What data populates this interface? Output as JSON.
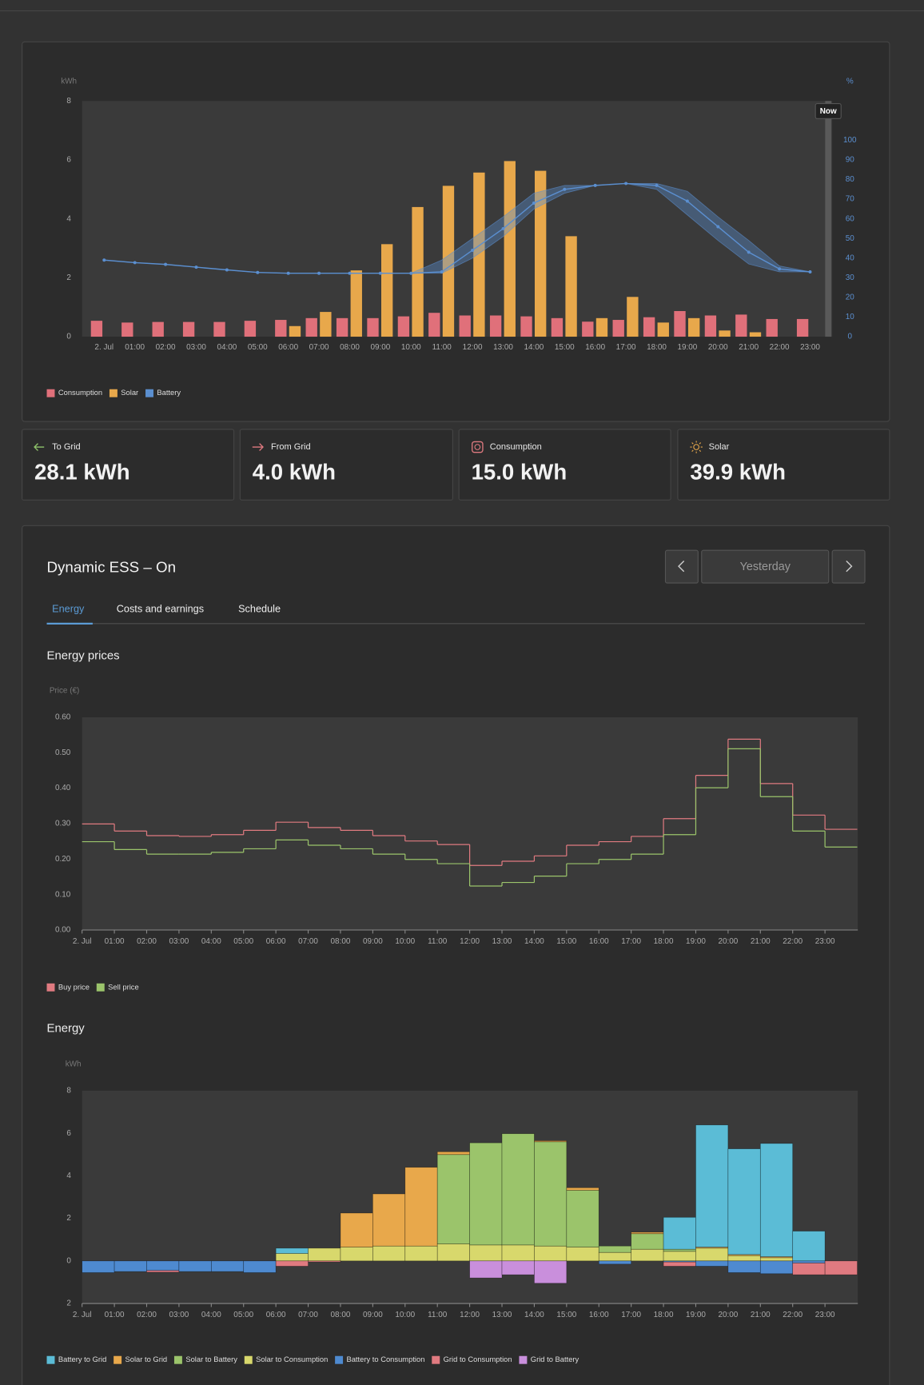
{
  "stats": [
    {
      "label": "To Grid",
      "value": "28.1 kWh"
    },
    {
      "label": "From Grid",
      "value": "4.0 kWh"
    },
    {
      "label": "Consumption",
      "value": "15.0 kWh"
    },
    {
      "label": "Solar",
      "value": "39.9 kWh"
    }
  ],
  "ess": {
    "title": "Dynamic ESS – On",
    "date_button": "Yesterday",
    "tabs": [
      "Energy",
      "Costs and earnings",
      "Schedule"
    ],
    "sections": [
      "Energy prices",
      "Energy"
    ]
  },
  "chart_data": [
    {
      "type": "bar",
      "ylabel": "kWh",
      "y2label": "%",
      "annotation": "Now",
      "categories": [
        "2. Jul",
        "01:00",
        "02:00",
        "03:00",
        "04:00",
        "05:00",
        "06:00",
        "07:00",
        "08:00",
        "09:00",
        "10:00",
        "11:00",
        "12:00",
        "13:00",
        "14:00",
        "15:00",
        "16:00",
        "17:00",
        "18:00",
        "19:00",
        "20:00",
        "21:00",
        "22:00",
        "23:00"
      ],
      "series": [
        {
          "name": "Consumption",
          "color": "#e0707a",
          "values": [
            0.54,
            0.48,
            0.5,
            0.5,
            0.5,
            0.54,
            0.57,
            0.63,
            0.63,
            0.63,
            0.69,
            0.81,
            0.72,
            0.72,
            0.69,
            0.63,
            0.51,
            0.57,
            0.66,
            0.87,
            0.72,
            0.75,
            0.6,
            0.6
          ]
        },
        {
          "name": "Solar",
          "color": "#e8a84b",
          "values": [
            0,
            0,
            0,
            0,
            0,
            0,
            0.36,
            0.84,
            2.25,
            3.14,
            4.4,
            5.12,
            5.57,
            5.96,
            5.63,
            3.41,
            0.63,
            1.35,
            0.48,
            0.63,
            0.21,
            0.15,
            0,
            0
          ]
        },
        {
          "name": "Battery",
          "color": "#5b8fd0",
          "axis": "y2",
          "values": [
            39,
            37.7,
            36.8,
            35.4,
            34,
            32.7,
            32.3,
            32.3,
            32.3,
            32.3,
            32.3,
            33,
            44,
            55,
            68,
            75,
            77,
            78,
            77,
            69,
            56,
            43,
            34.5,
            33
          ],
          "low": [
            39,
            37.7,
            36.8,
            35.4,
            34,
            32.7,
            32.3,
            32.3,
            32.3,
            32.3,
            32.3,
            32.3,
            40,
            51,
            65,
            73,
            77,
            78,
            75,
            62,
            49,
            37,
            33,
            33
          ],
          "high": [
            39,
            37.7,
            36.8,
            35.4,
            34,
            32.7,
            32.3,
            32.3,
            32.3,
            32.3,
            32.3,
            39,
            50,
            61,
            73,
            77,
            77,
            78,
            78,
            74,
            61,
            49,
            36,
            33
          ]
        }
      ],
      "ylim": [
        0,
        8
      ],
      "yticks": [
        0,
        2,
        4,
        6,
        8
      ],
      "y2lim": [
        0,
        120
      ],
      "y2ticks": [
        0,
        10,
        20,
        30,
        40,
        50,
        60,
        70,
        80,
        90,
        100
      ]
    },
    {
      "type": "step",
      "ylabel": "Price (€)",
      "categories": [
        "2. Jul",
        "01:00",
        "02:00",
        "03:00",
        "04:00",
        "05:00",
        "06:00",
        "07:00",
        "08:00",
        "09:00",
        "10:00",
        "11:00",
        "12:00",
        "13:00",
        "14:00",
        "15:00",
        "16:00",
        "17:00",
        "18:00",
        "19:00",
        "20:00",
        "21:00",
        "22:00",
        "23:00"
      ],
      "series": [
        {
          "name": "Buy price",
          "color": "#e07a80",
          "values": [
            0.299,
            0.279,
            0.266,
            0.264,
            0.269,
            0.281,
            0.304,
            0.289,
            0.281,
            0.266,
            0.251,
            0.241,
            0.182,
            0.194,
            0.209,
            0.239,
            0.249,
            0.264,
            0.314,
            0.436,
            0.538,
            0.413,
            0.324,
            0.284
          ]
        },
        {
          "name": "Sell price",
          "color": "#9bc46b",
          "values": [
            0.249,
            0.227,
            0.214,
            0.214,
            0.219,
            0.229,
            0.254,
            0.239,
            0.229,
            0.214,
            0.199,
            0.187,
            0.124,
            0.134,
            0.152,
            0.187,
            0.199,
            0.214,
            0.269,
            0.401,
            0.511,
            0.376,
            0.279,
            0.234
          ]
        }
      ],
      "ylim": [
        0,
        0.6
      ],
      "yticks": [
        {
          "value": 0,
          "label": "0.00"
        },
        {
          "value": 0.1,
          "label": "0.10"
        },
        {
          "value": 0.2,
          "label": "0.20"
        },
        {
          "value": 0.3,
          "label": "0.30"
        },
        {
          "value": 0.4,
          "label": "0.40"
        },
        {
          "value": 0.5,
          "label": "0.50"
        },
        {
          "value": 0.6,
          "label": "0.60"
        }
      ]
    },
    {
      "type": "stacked-bar",
      "ylabel": "kWh",
      "categories": [
        "2. Jul",
        "01:00",
        "02:00",
        "03:00",
        "04:00",
        "05:00",
        "06:00",
        "07:00",
        "08:00",
        "09:00",
        "10:00",
        "11:00",
        "12:00",
        "13:00",
        "14:00",
        "15:00",
        "16:00",
        "17:00",
        "18:00",
        "19:00",
        "20:00",
        "21:00",
        "22:00",
        "23:00"
      ],
      "series": [
        {
          "name": "Battery to Grid",
          "color": "#5bbcd6",
          "values": [
            0,
            0,
            0,
            0,
            0,
            0,
            0.25,
            0,
            0,
            0,
            0,
            0,
            0,
            0,
            0,
            0,
            0,
            0,
            1.5,
            5.74,
            4.97,
            5.32,
            1.4,
            0
          ]
        },
        {
          "name": "Solar to Grid",
          "color": "#e8a84b",
          "values": [
            0,
            0,
            0,
            0,
            0,
            0,
            0,
            0,
            1.6,
            2.45,
            3.7,
            0.13,
            0,
            0,
            0.05,
            0.12,
            0,
            0.07,
            0,
            0.05,
            0.05,
            0.05,
            0,
            0
          ]
        },
        {
          "name": "Solar to Battery",
          "color": "#9bc46b",
          "values": [
            0,
            0,
            0,
            0,
            0,
            0,
            0,
            0,
            0,
            0,
            0,
            4.2,
            4.8,
            5.23,
            4.9,
            2.67,
            0.3,
            0.73,
            0.1,
            0,
            0,
            0,
            0,
            0
          ]
        },
        {
          "name": "Solar to Consumption",
          "color": "#d8d86c",
          "values": [
            0,
            0,
            0,
            0,
            0,
            0,
            0.35,
            0.6,
            0.65,
            0.7,
            0.7,
            0.8,
            0.75,
            0.75,
            0.7,
            0.65,
            0.4,
            0.55,
            0.45,
            0.6,
            0.25,
            0.15,
            0,
            0
          ]
        },
        {
          "name": "Battery to Consumption",
          "color": "#4e8ad0",
          "values": [
            -0.55,
            -0.5,
            -0.45,
            -0.5,
            -0.5,
            -0.55,
            0,
            0,
            0,
            0,
            0,
            0,
            0,
            0,
            0,
            0,
            -0.15,
            0,
            -0.05,
            -0.25,
            -0.55,
            -0.6,
            -0.1,
            0
          ]
        },
        {
          "name": "Grid to Consumption",
          "color": "#e07a80",
          "values": [
            0,
            0,
            -0.08,
            0,
            0,
            0,
            -0.25,
            -0.05,
            0,
            0,
            0,
            0,
            0,
            0,
            0,
            0,
            0,
            0,
            -0.2,
            0,
            0,
            0,
            -0.55,
            -0.65
          ]
        },
        {
          "name": "Grid to Battery",
          "color": "#c98fdc",
          "values": [
            0,
            0,
            0,
            0,
            0,
            0,
            0,
            0,
            0,
            0,
            0,
            0,
            -0.8,
            -0.65,
            -1.05,
            0,
            0,
            0,
            0,
            0,
            0,
            0,
            0,
            0
          ]
        }
      ],
      "ylim": [
        -2,
        8
      ],
      "yticks": [
        {
          "value": -2,
          "label": "2"
        },
        0,
        2,
        4,
        6,
        8
      ]
    }
  ]
}
